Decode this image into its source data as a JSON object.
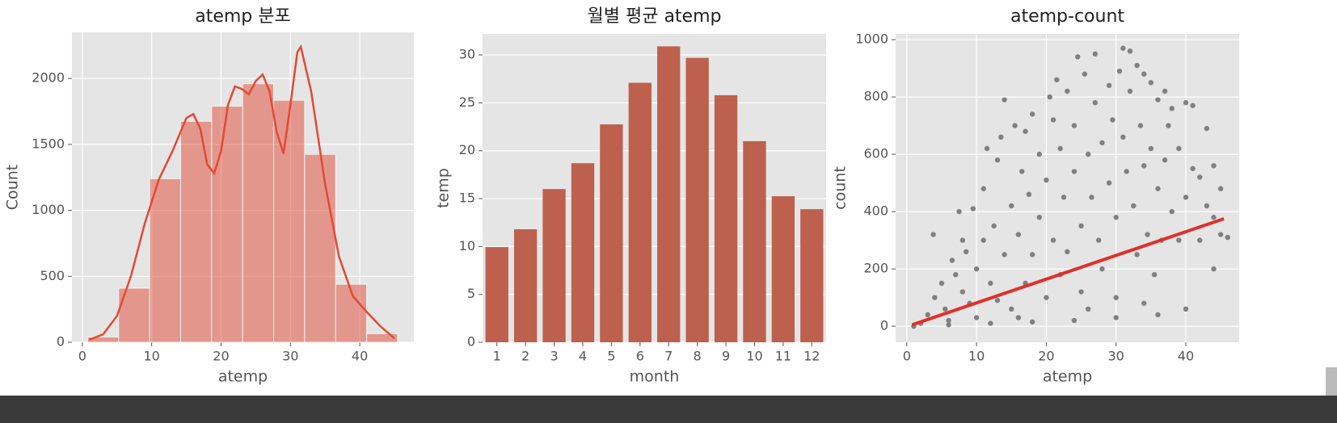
{
  "chart_data": [
    {
      "type": "histogram",
      "title": "atemp 분포",
      "xlabel": "atemp",
      "ylabel": "Count",
      "bins": [
        0.76,
        5.23,
        9.7,
        14.17,
        18.64,
        23.11,
        27.58,
        32.05,
        36.52,
        40.99,
        45.46
      ],
      "counts": [
        40,
        410,
        1240,
        1675,
        1790,
        1960,
        1835,
        1425,
        440,
        65
      ],
      "color": "#E24A33",
      "kde": {
        "x": [
          1,
          3,
          5,
          7,
          9,
          11,
          13,
          15,
          16,
          17,
          18,
          19,
          20,
          21,
          22,
          23,
          24,
          25,
          26,
          27,
          28,
          29,
          30,
          31,
          31.5,
          33,
          35,
          37,
          39,
          41,
          43,
          45
        ],
        "y": [
          20,
          60,
          200,
          500,
          900,
          1230,
          1450,
          1700,
          1730,
          1620,
          1350,
          1280,
          1450,
          1800,
          1940,
          1920,
          1880,
          1980,
          2030,
          1900,
          1600,
          1430,
          1800,
          2200,
          2240,
          1900,
          1200,
          650,
          350,
          230,
          120,
          30
        ]
      },
      "xlim": [
        -1.5,
        47.8
      ],
      "ylim": [
        0,
        2350
      ],
      "xticks": [
        0,
        10,
        20,
        30,
        40
      ],
      "yticks": [
        0,
        500,
        1000,
        1500,
        2000
      ],
      "grid": true
    },
    {
      "type": "bar",
      "title": "월별 평균 atemp",
      "xlabel": "month",
      "ylabel": "temp",
      "categories": [
        "1",
        "2",
        "3",
        "4",
        "5",
        "6",
        "7",
        "8",
        "9",
        "10",
        "11",
        "12"
      ],
      "values": [
        9.94,
        11.8,
        16.0,
        18.7,
        22.75,
        27.1,
        30.9,
        29.7,
        25.8,
        21.0,
        15.25,
        13.9
      ],
      "color": "#BE604E",
      "ylim": [
        0,
        32.2
      ],
      "yticks": [
        0,
        5,
        10,
        15,
        20,
        25,
        30
      ],
      "grid": true
    },
    {
      "type": "scatter",
      "title": "atemp-count",
      "xlabel": "atemp",
      "ylabel": "count",
      "x": [
        2,
        3,
        3.8,
        4,
        5,
        5.5,
        6,
        6.5,
        7,
        7.5,
        8,
        8.5,
        9,
        9.5,
        10,
        10,
        11,
        11,
        11.5,
        12,
        12.5,
        13,
        13,
        13.5,
        14,
        14,
        15,
        15,
        15.5,
        16,
        16.5,
        17,
        17,
        17.5,
        18,
        18,
        19,
        19,
        20,
        20,
        20.5,
        21,
        21,
        21.5,
        22,
        22,
        22.5,
        23,
        23,
        24,
        24,
        24.5,
        25,
        25,
        25.5,
        26,
        26.5,
        27,
        27,
        27.5,
        28,
        28,
        29,
        29,
        29.5,
        30,
        30,
        30.5,
        31,
        31,
        31.5,
        32,
        32,
        32.5,
        33,
        33,
        33.5,
        34,
        34,
        34.5,
        35,
        35,
        35.5,
        36,
        36,
        36.5,
        37,
        37,
        37.5,
        38,
        38,
        39,
        39,
        40,
        40,
        41,
        41,
        42,
        42,
        43,
        43,
        44,
        44,
        45,
        45,
        46,
        1,
        6,
        12,
        18,
        24,
        30,
        36,
        40,
        44,
        8,
        16,
        26,
        34
      ],
      "y": [
        10,
        40,
        320,
        100,
        150,
        60,
        20,
        230,
        180,
        400,
        120,
        260,
        80,
        410,
        200,
        30,
        300,
        480,
        620,
        150,
        350,
        90,
        580,
        660,
        250,
        790,
        420,
        60,
        700,
        320,
        540,
        150,
        680,
        460,
        250,
        740,
        380,
        600,
        100,
        510,
        800,
        300,
        720,
        860,
        180,
        620,
        450,
        820,
        260,
        540,
        700,
        940,
        350,
        120,
        880,
        600,
        450,
        950,
        780,
        300,
        640,
        200,
        840,
        500,
        720,
        380,
        100,
        890,
        660,
        970,
        540,
        960,
        820,
        420,
        910,
        250,
        700,
        880,
        560,
        320,
        850,
        620,
        180,
        790,
        480,
        300,
        820,
        580,
        700,
        400,
        760,
        620,
        300,
        780,
        450,
        770,
        550,
        300,
        520,
        690,
        420,
        560,
        380,
        320,
        480,
        310,
        0,
        5,
        10,
        15,
        20,
        30,
        40,
        60,
        200,
        300,
        30,
        60,
        80
      ],
      "color": "#808080",
      "fit": {
        "x": [
          0.76,
          45.46
        ],
        "y": [
          5,
          375
        ],
        "color": "#E0302A"
      },
      "xlim": [
        -1.6,
        47.65
      ],
      "ylim": [
        -56,
        1020
      ],
      "xticks": [
        0,
        10,
        20,
        30,
        40
      ],
      "yticks": [
        0,
        200,
        400,
        600,
        800,
        1000
      ],
      "grid": true
    }
  ]
}
